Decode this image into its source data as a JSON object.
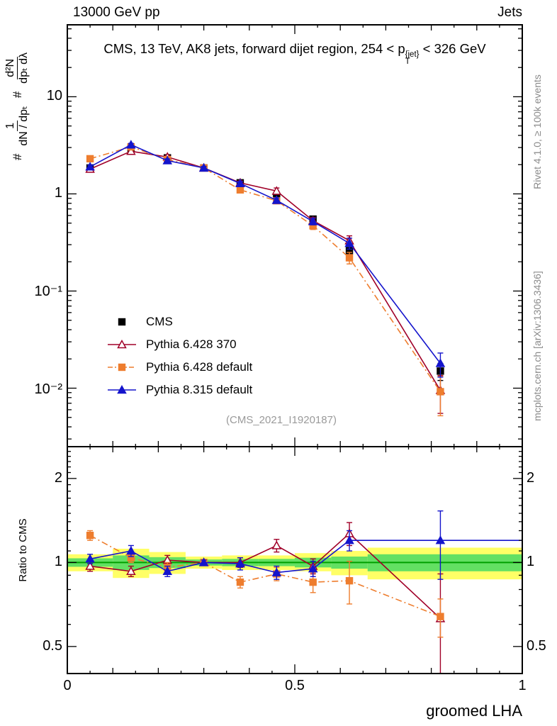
{
  "header": {
    "left": "13000 GeV pp",
    "right": "Jets"
  },
  "sidebar": {
    "rivet": "Rivet 4.1.0, ≥ 100k events",
    "mcplots": "mcplots.cern.ch [arXiv:1306.3436]"
  },
  "main": {
    "title_pre": "CMS, 13 TeV, AK8 jets, forward dijet region, 254 < p",
    "title_sup": "{jet}",
    "title_sub": "T",
    "title_post": " < 326 GeV",
    "ylabel": {
      "h1": "#",
      "f1n": "1",
      "f1d": "dN / dpₜ",
      "h2": "#",
      "f2n": "d²N",
      "f2d": "dpₜ dλ"
    },
    "watermark": "(CMS_2021_I1920187)"
  },
  "ratio": {
    "ylabel": "Ratio to CMS"
  },
  "xlabel": "groomed LHA",
  "chart_data": [
    {
      "type": "line",
      "panel": "main",
      "title": "CMS, 13 TeV, AK8 jets, forward dijet region, 254 < pT^{jet} < 326 GeV",
      "xlabel": "groomed LHA",
      "ylabel": "# 1/(dN/dpT) # d2N/(dpT dlambda)",
      "yscale": "log",
      "xlim": [
        0,
        1
      ],
      "ylim": [
        0.0025,
        55
      ],
      "legend_position": "inside-left",
      "x": [
        0.05,
        0.14,
        0.22,
        0.3,
        0.38,
        0.46,
        0.54,
        0.62,
        0.82
      ],
      "yticks": [
        {
          "v": 10,
          "label": "10"
        },
        {
          "v": 1,
          "label": "1"
        },
        {
          "v": 0.1,
          "label": "10⁻¹"
        },
        {
          "v": 0.01,
          "label": "10⁻²"
        }
      ],
      "series": [
        {
          "name": "CMS",
          "color": "#000000",
          "marker": "square",
          "fill": true,
          "line": "none",
          "values": [
            1.85,
            2.95,
            2.35,
            1.85,
            1.3,
            0.93,
            0.55,
            0.26,
            0.015
          ],
          "yerr": [
            0.09,
            0.12,
            0.1,
            0.08,
            0.06,
            0.05,
            0.03,
            0.02,
            0.003
          ]
        },
        {
          "name": "Pythia 6.428 370",
          "color": "#a00028",
          "marker": "triangle",
          "fill": false,
          "line": "solid",
          "values": [
            1.8,
            2.75,
            2.4,
            1.85,
            1.3,
            1.07,
            0.53,
            0.33,
            0.0095
          ],
          "yerr": [
            0.07,
            0.1,
            0.09,
            0.07,
            0.06,
            0.08,
            0.04,
            0.04,
            0.004
          ]
        },
        {
          "name": "Pythia 6.428 default",
          "color": "#ee7d2e",
          "marker": "square",
          "fill": true,
          "line": "dashdot",
          "values": [
            2.3,
            3.05,
            2.25,
            1.85,
            1.1,
            0.85,
            0.47,
            0.22,
            0.0092
          ],
          "yerr": [
            0.09,
            0.11,
            0.09,
            0.07,
            0.05,
            0.05,
            0.04,
            0.03,
            0.004
          ]
        },
        {
          "name": "Pythia 8.315 default",
          "color": "#1414cc",
          "marker": "triangle",
          "fill": true,
          "line": "solid",
          "values": [
            1.9,
            3.2,
            2.2,
            1.85,
            1.28,
            0.86,
            0.52,
            0.31,
            0.018
          ],
          "yerr": [
            0.08,
            0.11,
            0.09,
            0.07,
            0.06,
            0.05,
            0.04,
            0.04,
            0.005
          ]
        }
      ]
    },
    {
      "type": "line",
      "panel": "ratio",
      "ylabel": "Ratio to CMS",
      "xlabel": "groomed LHA",
      "yscale": "log",
      "xlim": [
        0,
        1
      ],
      "ylim": [
        0.4,
        2.6
      ],
      "x": [
        0.05,
        0.14,
        0.22,
        0.3,
        0.38,
        0.46,
        0.54,
        0.62,
        0.82
      ],
      "yticks": [
        {
          "v": 2,
          "label": "2"
        },
        {
          "v": 1,
          "label": "1"
        },
        {
          "v": 0.5,
          "label": "0.5"
        }
      ],
      "xticks": [
        {
          "v": 0,
          "label": "0"
        },
        {
          "v": 0.5,
          "label": "0.5"
        },
        {
          "v": 1,
          "label": "1"
        }
      ],
      "bands": {
        "edges": [
          0,
          0.1,
          0.18,
          0.26,
          0.34,
          0.42,
          0.5,
          0.58,
          0.66,
          1.0
        ],
        "yellow": [
          [
            0.93,
            1.07
          ],
          [
            0.88,
            1.12
          ],
          [
            0.91,
            1.09
          ],
          [
            0.95,
            1.05
          ],
          [
            0.94,
            1.06
          ],
          [
            0.94,
            1.06
          ],
          [
            0.93,
            1.08
          ],
          [
            0.9,
            1.1
          ],
          [
            0.87,
            1.13
          ]
        ],
        "green": [
          [
            0.965,
            1.035
          ],
          [
            0.94,
            1.06
          ],
          [
            0.955,
            1.045
          ],
          [
            0.975,
            1.025
          ],
          [
            0.97,
            1.03
          ],
          [
            0.97,
            1.03
          ],
          [
            0.96,
            1.04
          ],
          [
            0.95,
            1.05
          ],
          [
            0.93,
            1.07
          ]
        ],
        "yellow_color": "#ffff66",
        "green_color": "#63e063",
        "centerline_color": "#00a000"
      },
      "series": [
        {
          "name": "Pythia 6.428 370",
          "color": "#a00028",
          "marker": "triangle",
          "fill": false,
          "line": "solid",
          "values": [
            0.97,
            0.93,
            1.02,
            1.0,
            1.0,
            1.15,
            0.97,
            1.27,
            0.63
          ],
          "yerr": [
            0.04,
            0.04,
            0.04,
            0.02,
            0.04,
            0.06,
            0.06,
            0.12,
            0.28
          ]
        },
        {
          "name": "Pythia 6.428 default",
          "color": "#ee7d2e",
          "marker": "square",
          "fill": true,
          "line": "dashdot",
          "values": [
            1.25,
            1.04,
            0.96,
            1.0,
            0.85,
            0.91,
            0.85,
            0.86,
            0.64
          ],
          "yerr": [
            0.05,
            0.04,
            0.04,
            0.02,
            0.04,
            0.05,
            0.07,
            0.15,
            0.1
          ]
        },
        {
          "name": "Pythia 8.315 default",
          "color": "#1414cc",
          "marker": "triangle",
          "fill": true,
          "line": "solid",
          "extend_last": true,
          "values": [
            1.03,
            1.1,
            0.93,
            1.0,
            0.99,
            0.92,
            0.95,
            1.2,
            1.2
          ],
          "yerr": [
            0.04,
            0.05,
            0.04,
            0.02,
            0.05,
            0.05,
            0.06,
            0.1,
            0.33
          ]
        }
      ]
    }
  ]
}
